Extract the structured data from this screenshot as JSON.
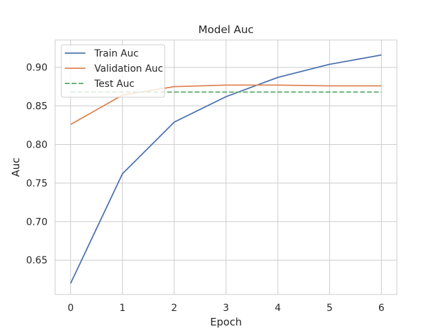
{
  "chart_data": {
    "type": "line",
    "title": "Model Auc",
    "xlabel": "Epoch",
    "ylabel": "Auc",
    "x": [
      0,
      1,
      2,
      3,
      4,
      5,
      6
    ],
    "xticks": [
      "0",
      "1",
      "2",
      "3",
      "4",
      "5",
      "6"
    ],
    "xlim": [
      -0.3,
      6.3
    ],
    "yticks": [
      "0.65",
      "0.70",
      "0.75",
      "0.80",
      "0.85",
      "0.90"
    ],
    "ylim": [
      0.6055,
      0.9355
    ],
    "grid": true,
    "legend_position": "top-left",
    "series": [
      {
        "name": "Train Auc",
        "color": "#4c72b0",
        "style": "solid",
        "values": [
          0.62,
          0.762,
          0.829,
          0.862,
          0.887,
          0.904,
          0.916
        ]
      },
      {
        "name": "Validation Auc",
        "color": "#dd8452",
        "style": "solid",
        "values": [
          0.826,
          0.864,
          0.875,
          0.877,
          0.877,
          0.876,
          0.876
        ]
      },
      {
        "name": "Test Auc",
        "color": "#55a868",
        "style": "dashed",
        "values": [
          0.868,
          0.868,
          0.868,
          0.868,
          0.868,
          0.868,
          0.868
        ]
      }
    ]
  }
}
